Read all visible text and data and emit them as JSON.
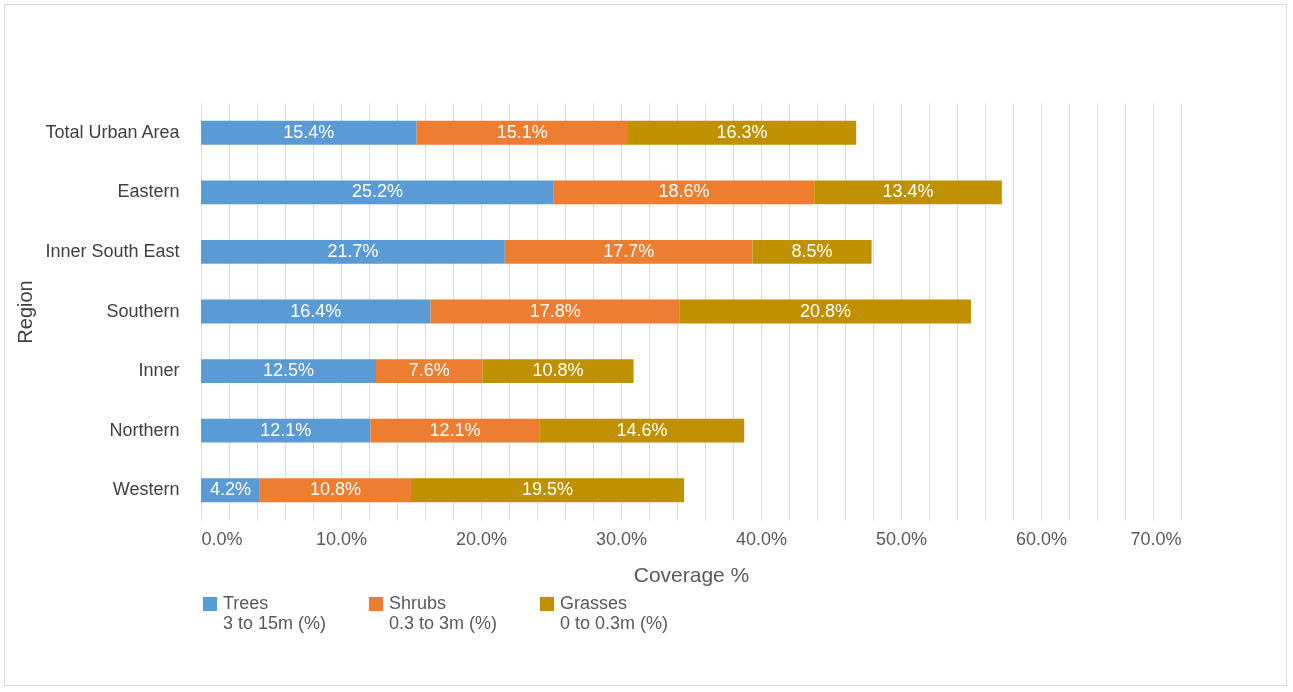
{
  "chart_data": {
    "type": "bar",
    "orientation": "horizontal",
    "stacked": true,
    "xlabel": "Coverage %",
    "ylabel": "Region",
    "categories": [
      "Total Urban Area",
      "Eastern",
      "Inner South East",
      "Southern",
      "Inner",
      "Northern",
      "Western"
    ],
    "series": [
      {
        "name": "Trees 3 to 15m (%)",
        "color": "#5b9bd5",
        "values": [
          15.4,
          25.2,
          21.7,
          16.4,
          12.5,
          12.1,
          4.2
        ],
        "value_labels": [
          "15.4%",
          "25.2%",
          "21.7%",
          "16.4%",
          "12.5%",
          "12.1%",
          "4.2%"
        ]
      },
      {
        "name": "Shrubs 0.3 to 3m (%)",
        "color": "#ed7d31",
        "values": [
          15.1,
          18.6,
          17.7,
          17.8,
          7.6,
          12.1,
          10.8
        ],
        "value_labels": [
          "15.1%",
          "18.6%",
          "17.7%",
          "17.8%",
          "7.6%",
          "12.1%",
          "10.8%"
        ]
      },
      {
        "name": "Grasses 0 to 0.3m (%)",
        "color": "#bf9000",
        "values": [
          16.3,
          13.4,
          8.5,
          20.8,
          10.8,
          14.6,
          19.5
        ],
        "value_labels": [
          "16.3%",
          "13.4%",
          "8.5%",
          "20.8%",
          "10.8%",
          "14.6%",
          "19.5%"
        ]
      }
    ],
    "xlim": [
      0,
      70
    ],
    "xticks": [
      {
        "value": 0,
        "label": "0.0%"
      },
      {
        "value": 2,
        "label": null
      },
      {
        "value": 4,
        "label": null
      },
      {
        "value": 6,
        "label": null
      },
      {
        "value": 8,
        "label": null
      },
      {
        "value": 10,
        "label": "10.0%"
      },
      {
        "value": 12,
        "label": null
      },
      {
        "value": 14,
        "label": null
      },
      {
        "value": 16,
        "label": null
      },
      {
        "value": 18,
        "label": null
      },
      {
        "value": 20,
        "label": "20.0%"
      },
      {
        "value": 22,
        "label": null
      },
      {
        "value": 24,
        "label": null
      },
      {
        "value": 26,
        "label": null
      },
      {
        "value": 28,
        "label": null
      },
      {
        "value": 30,
        "label": "30.0%"
      },
      {
        "value": 32,
        "label": null
      },
      {
        "value": 34,
        "label": null
      },
      {
        "value": 36,
        "label": null
      },
      {
        "value": 38,
        "label": null
      },
      {
        "value": 40,
        "label": "40.0%"
      },
      {
        "value": 42,
        "label": null
      },
      {
        "value": 44,
        "label": null
      },
      {
        "value": 46,
        "label": null
      },
      {
        "value": 48,
        "label": null
      },
      {
        "value": 50,
        "label": "50.0%"
      },
      {
        "value": 52,
        "label": null
      },
      {
        "value": 54,
        "label": null
      },
      {
        "value": 56,
        "label": null
      },
      {
        "value": 58,
        "label": null
      },
      {
        "value": 60,
        "label": "60.0%"
      },
      {
        "value": 62,
        "label": null
      },
      {
        "value": 64,
        "label": null
      },
      {
        "value": 66,
        "label": null
      },
      {
        "value": 68,
        "label": null
      },
      {
        "value": 70,
        "label": "70.0%"
      }
    ],
    "grid": "x",
    "legend": "bottom"
  }
}
